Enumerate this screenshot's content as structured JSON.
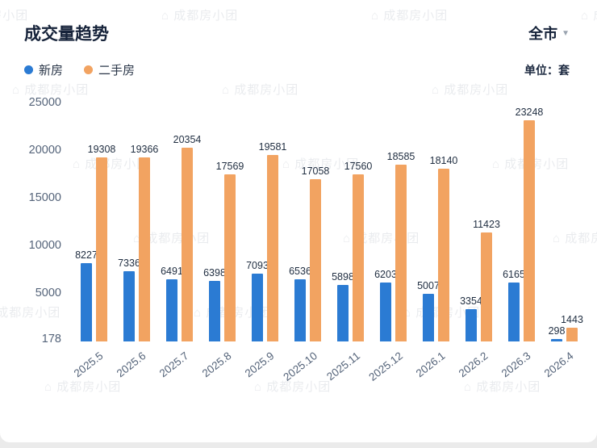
{
  "header": {
    "title": "成交量趋势",
    "filter_label": "全市",
    "unit": "单位：套"
  },
  "watermark": "成都房小团",
  "chart_data": {
    "type": "bar",
    "title": "成交量趋势",
    "categories": [
      "2025.5",
      "2025.6",
      "2025.7",
      "2025.8",
      "2025.9",
      "2025.10",
      "2025.11",
      "2025.12",
      "2026.1",
      "2026.2",
      "2026.3",
      "2026.4"
    ],
    "series": [
      {
        "name": "新房",
        "color": "#2B7BD3",
        "values": [
          8227,
          7336,
          6491,
          6398,
          7093,
          6536,
          5898,
          6203,
          5007,
          3354,
          6165,
          298
        ]
      },
      {
        "name": "二手房",
        "color": "#F2A361",
        "values": [
          19308,
          19366,
          20354,
          17569,
          19581,
          17058,
          17560,
          18585,
          18140,
          11423,
          23248,
          1443
        ]
      }
    ],
    "yticks": [
      25000,
      20000,
      15000,
      10000,
      5000,
      178
    ],
    "ylim": [
      0,
      25000
    ],
    "xlabel": "",
    "ylabel": "",
    "grid": false,
    "legend_position": "top-left"
  }
}
